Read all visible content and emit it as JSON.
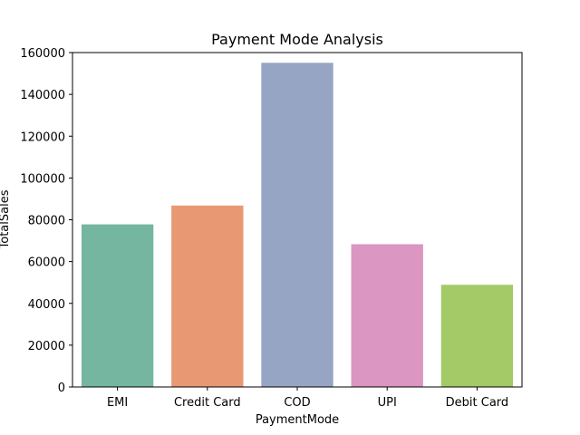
{
  "chart_data": {
    "type": "bar",
    "title": "Payment Mode Analysis",
    "xlabel": "PaymentMode",
    "ylabel": "TotalSales",
    "categories": [
      "EMI",
      "Credit Card",
      "COD",
      "UPI",
      "Debit Card"
    ],
    "values": [
      77800,
      86800,
      155100,
      68300,
      48900
    ],
    "colors": [
      "#75b6a1",
      "#e99874",
      "#96a5c4",
      "#db96c2",
      "#a3ca67"
    ],
    "ylim": [
      0,
      160000
    ],
    "yticks": [
      0,
      20000,
      40000,
      60000,
      80000,
      100000,
      120000,
      140000,
      160000
    ],
    "grid": false,
    "legend": "none"
  }
}
